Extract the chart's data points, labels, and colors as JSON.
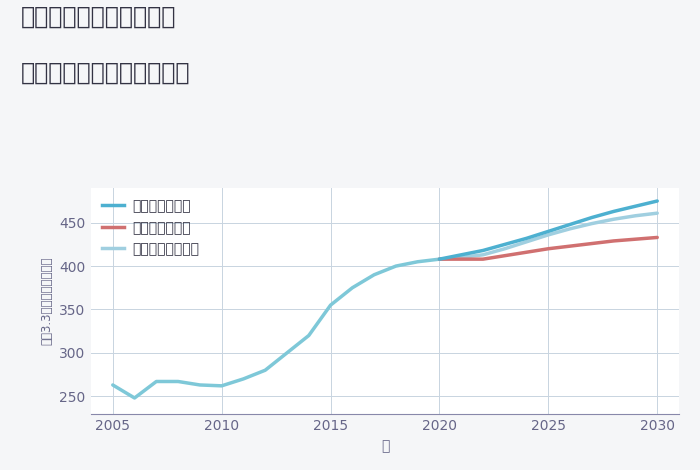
{
  "title_line1": "東京都新宿区南山伏町の",
  "title_line2": "中古マンションの価格推移",
  "xlabel": "年",
  "ylabel": "坪（3.3㎡）単価（万円）",
  "ylim": [
    230,
    490
  ],
  "yticks": [
    250,
    300,
    350,
    400,
    450
  ],
  "xlim": [
    2004,
    2031
  ],
  "xticks": [
    2005,
    2010,
    2015,
    2020,
    2025,
    2030
  ],
  "background_color": "#f5f6f8",
  "plot_bg_color": "#ffffff",
  "grid_color": "#c8d4e0",
  "historical": {
    "years": [
      2005,
      2006,
      2007,
      2008,
      2009,
      2010,
      2011,
      2012,
      2013,
      2014,
      2015,
      2016,
      2017,
      2018,
      2019,
      2020
    ],
    "values": [
      263,
      248,
      267,
      267,
      263,
      262,
      270,
      280,
      300,
      320,
      355,
      375,
      390,
      400,
      405,
      408
    ],
    "color": "#7ec8d8",
    "linewidth": 2.5
  },
  "good": {
    "label": "グッドシナリオ",
    "years": [
      2020,
      2021,
      2022,
      2023,
      2024,
      2025,
      2026,
      2027,
      2028,
      2029,
      2030
    ],
    "values": [
      408,
      413,
      418,
      425,
      432,
      440,
      448,
      456,
      463,
      469,
      475
    ],
    "color": "#4db0d0",
    "linewidth": 2.5
  },
  "bad": {
    "label": "バッドシナリオ",
    "years": [
      2020,
      2021,
      2022,
      2023,
      2024,
      2025,
      2026,
      2027,
      2028,
      2029,
      2030
    ],
    "values": [
      408,
      408,
      408,
      412,
      416,
      420,
      423,
      426,
      429,
      431,
      433
    ],
    "color": "#d07070",
    "linewidth": 2.5
  },
  "normal": {
    "label": "ノーマルシナリオ",
    "years": [
      2020,
      2021,
      2022,
      2023,
      2024,
      2025,
      2026,
      2027,
      2028,
      2029,
      2030
    ],
    "values": [
      408,
      410,
      413,
      420,
      428,
      436,
      443,
      449,
      454,
      458,
      461
    ],
    "color": "#a0cfe0",
    "linewidth": 2.5
  },
  "title_color": "#333344",
  "axis_color": "#8888aa",
  "tick_color": "#666688",
  "title_fontsize": 17,
  "legend_fontsize": 10,
  "axis_label_fontsize": 10
}
